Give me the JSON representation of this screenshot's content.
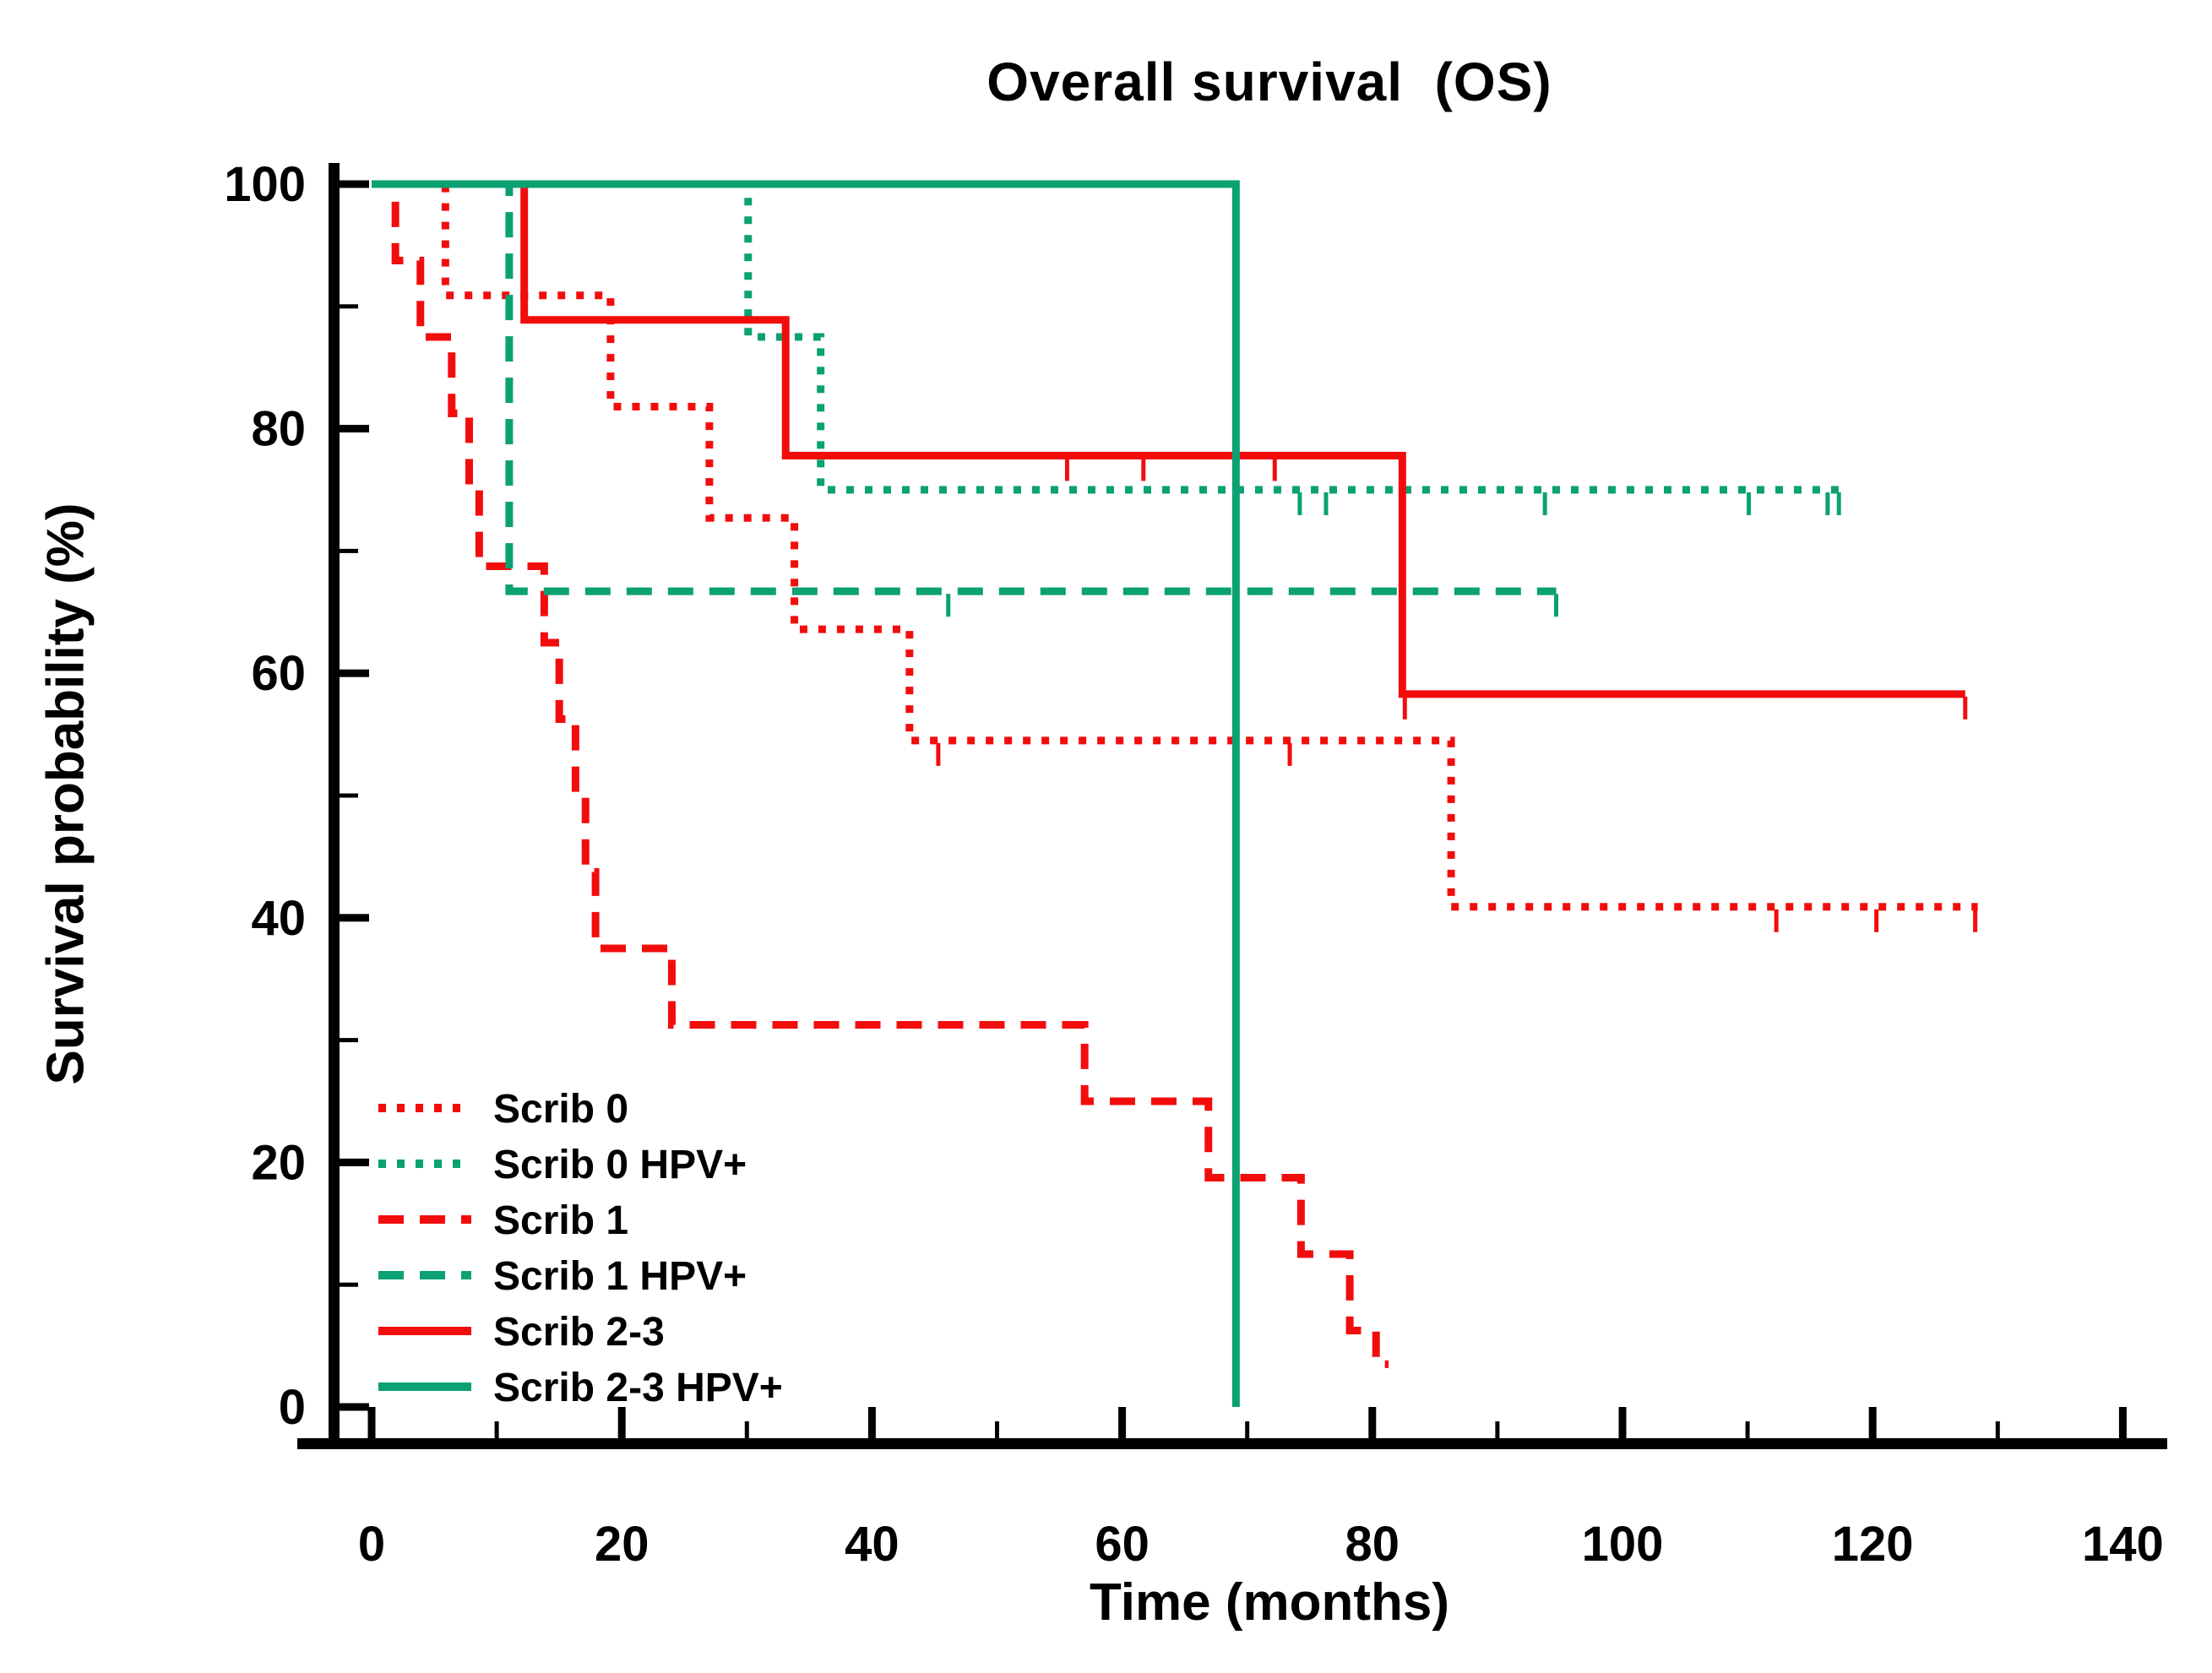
{
  "title": "Overall survival  (OS)",
  "axis_titles": {
    "x": "Time (months)",
    "y": "Survival probability (%)"
  },
  "colors": {
    "red": "#f20d0d",
    "green": "#0ba173",
    "axis": "#000000",
    "background": "#ffffff"
  },
  "chart_data": {
    "type": "line",
    "subtype": "kaplan-meier-step",
    "title": "Overall survival  (OS)",
    "xlabel": "Time (months)",
    "ylabel": "Survival probability (%)",
    "xlim": [
      0,
      140
    ],
    "ylim": [
      0,
      100
    ],
    "grid": false,
    "legend_position": "inside-bottom-left",
    "x_major_ticks": [
      0,
      20,
      40,
      60,
      80,
      100,
      120,
      140
    ],
    "x_minor_ticks": [
      10,
      30,
      50,
      70,
      90,
      110,
      130
    ],
    "y_major_ticks": [
      0,
      20,
      40,
      60,
      80,
      100
    ],
    "y_minor_ticks": [
      10,
      30,
      50,
      70,
      90
    ],
    "series": [
      {
        "name": "Scrib 0",
        "color": "red",
        "style": "dotted",
        "end_month": 128.4,
        "steps": [
          [
            0,
            100
          ],
          [
            5.9,
            90.9
          ],
          [
            19.1,
            81.8
          ],
          [
            27,
            72.7
          ],
          [
            33.8,
            63.6
          ],
          [
            43,
            54.5
          ],
          [
            86.3,
            40.9
          ]
        ],
        "censor_months": [
          45.3,
          73.4,
          112.3,
          120.3,
          128.2
        ]
      },
      {
        "name": "Scrib 0 HPV+",
        "color": "green",
        "style": "dotted",
        "end_month": 117.3,
        "steps": [
          [
            0,
            100
          ],
          [
            30.1,
            87.5
          ],
          [
            35.9,
            75
          ]
        ],
        "censor_months": [
          74.2,
          76.3,
          93.8,
          110.1,
          116.4,
          117.3
        ]
      },
      {
        "name": "Scrib 1",
        "color": "red",
        "style": "dashed",
        "end_month": 81.3,
        "steps": [
          [
            0,
            100
          ],
          [
            1.9,
            93.75
          ],
          [
            3.9,
            87.5
          ],
          [
            6.4,
            81.25
          ],
          [
            7.8,
            75
          ],
          [
            8.6,
            68.75
          ],
          [
            13.8,
            62.5
          ],
          [
            15,
            56.25
          ],
          [
            16.3,
            50
          ],
          [
            17.1,
            43.75
          ],
          [
            17.9,
            37.5
          ],
          [
            24,
            31.25
          ],
          [
            57,
            25
          ],
          [
            66.9,
            18.75
          ],
          [
            74.3,
            12.5
          ],
          [
            78.2,
            6.25
          ],
          [
            80.3,
            3.5
          ]
        ],
        "censor_months": []
      },
      {
        "name": "Scrib 1 HPV+",
        "color": "green",
        "style": "dashed",
        "end_month": 94.7,
        "steps": [
          [
            0,
            100
          ],
          [
            11,
            66.7
          ]
        ],
        "censor_months": [
          46.1,
          94.7
        ]
      },
      {
        "name": "Scrib 2-3",
        "color": "red",
        "style": "solid",
        "end_month": 127.4,
        "steps": [
          [
            0,
            100
          ],
          [
            12.2,
            88.9
          ],
          [
            33.1,
            77.8
          ],
          [
            82.4,
            58.3
          ]
        ],
        "censor_months": [
          55.6,
          61.7,
          72.2,
          82.6,
          127.4
        ]
      },
      {
        "name": "Scrib 2-3 HPV+",
        "color": "green",
        "style": "solid",
        "end_month": 69.1,
        "steps": [
          [
            0,
            100
          ],
          [
            69.1,
            0
          ]
        ],
        "censor_months": []
      }
    ]
  }
}
